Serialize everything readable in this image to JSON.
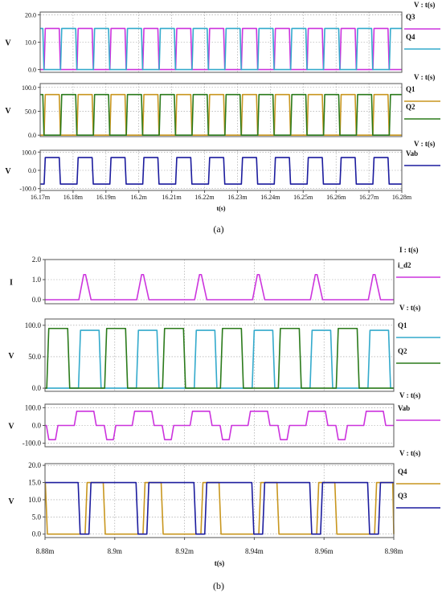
{
  "captions": [
    "(a)",
    "(b)"
  ],
  "colors": {
    "magenta": "#cc33dd",
    "cyan": "#33aacc",
    "orange": "#c8961e",
    "green": "#2a7a1a",
    "navy": "#1c1c9e"
  },
  "chart_data": [
    {
      "type": "line",
      "figure": "(a)",
      "xlabel": "t(s)",
      "xticks": [
        "16.17m",
        "16.18m",
        "16.19m",
        "16.2m",
        "16.21m",
        "16.22m",
        "16.23m",
        "16.24m",
        "16.25m",
        "16.26m",
        "16.27m",
        "16.28m"
      ],
      "xlim": [
        16.17,
        16.28
      ],
      "x_unit": "ms",
      "period_ms": 0.01,
      "panels": [
        {
          "ylabel": "V",
          "header": "V : t(s)",
          "ylim": [
            -1,
            21
          ],
          "yticks": [
            "0.0",
            "10.0",
            "20.0"
          ],
          "series": [
            {
              "name": "Q3",
              "color": "#cc33dd",
              "low": 0,
              "high": 15,
              "rise_ms": 16.1712,
              "fall_ms": 16.1758
            },
            {
              "name": "Q4",
              "color": "#33aacc",
              "low": 0,
              "high": 15,
              "rise_ms": 16.1762,
              "fall_ms": 16.1808
            }
          ]
        },
        {
          "ylabel": "V",
          "header": "V : t(s)",
          "ylim": [
            -3,
            108
          ],
          "yticks": [
            "0.0",
            "50.0",
            "100.0"
          ],
          "series": [
            {
              "name": "Q1",
              "color": "#c8961e",
              "low": 0,
              "high": 85,
              "rise_ms": 16.1712,
              "fall_ms": 16.1758
            },
            {
              "name": "Q2",
              "color": "#2a7a1a",
              "low": 0,
              "high": 85,
              "rise_ms": 16.1762,
              "fall_ms": 16.1808
            }
          ]
        },
        {
          "ylabel": "V",
          "header": "V : t(s)",
          "ylim": [
            -110,
            110
          ],
          "yticks": [
            "-100.0",
            "0.0",
            "100.0"
          ],
          "series": [
            {
              "name": "Vab",
              "color": "#1c1c9e",
              "low": -75,
              "high": 70,
              "rise_ms": 16.1712,
              "fall_ms": 16.1758
            }
          ]
        }
      ]
    },
    {
      "type": "line",
      "figure": "(b)",
      "xlabel": "t(s)",
      "xticks": [
        "8.88m",
        "8.9m",
        "8.92m",
        "8.94m",
        "8.96m",
        "8.98m"
      ],
      "xlim": [
        8.88,
        8.98
      ],
      "x_unit": "ms",
      "period_ms": 0.0166,
      "panels": [
        {
          "ylabel": "I",
          "header": "I : t(s)",
          "ylim": [
            -0.2,
            2.0
          ],
          "yticks": [
            "0.0",
            "1.0",
            "2.0"
          ],
          "series": [
            {
              "name": "i_d2",
              "color": "#cc33dd",
              "peak": 1.25,
              "pulse_start_ms": 8.8897,
              "pulse_width_ms": 0.0035
            }
          ]
        },
        {
          "ylabel": "V",
          "header": "V : t(s)",
          "ylim": [
            -5,
            110
          ],
          "yticks": [
            "0.0",
            "50.0",
            "100.0"
          ],
          "series": [
            {
              "name": "Q1",
              "color": "#33aacc",
              "low": 0,
              "high": 92,
              "rise_ms": 8.8896,
              "fall_ms": 8.8955
            },
            {
              "name": "Q2",
              "color": "#2a7a1a",
              "low": 0,
              "high": 95,
              "rise_ms": 8.8805,
              "fall_ms": 8.8865
            }
          ]
        },
        {
          "ylabel": "V",
          "header": "V : t(s)",
          "ylim": [
            -120,
            120
          ],
          "yticks": [
            "-100.0",
            "0.0",
            "100.0"
          ],
          "series": [
            {
              "name": "Vab",
              "color": "#cc33dd",
              "levels": [
                0,
                80,
                0,
                -80
              ],
              "level_starts_ms": [
                8.883,
                8.8884,
                8.894,
                8.897
              ]
            }
          ]
        },
        {
          "ylabel": "V",
          "header": "V : t(s)",
          "ylim": [
            -1,
            20.5
          ],
          "yticks": [
            "0.0",
            "5.0",
            "10.0",
            "15.0",
            "20.0"
          ],
          "series": [
            {
              "name": "Q4",
              "color": "#c8961e",
              "low": 0,
              "high": 15,
              "rise_ms": 8.8915,
              "fall_ms": 8.8967
            },
            {
              "name": "Q3",
              "color": "#1c1c9e",
              "low": 0,
              "high": 15,
              "rise_ms": 8.8926,
              "fall_ms": 8.8895
            }
          ]
        }
      ]
    }
  ]
}
